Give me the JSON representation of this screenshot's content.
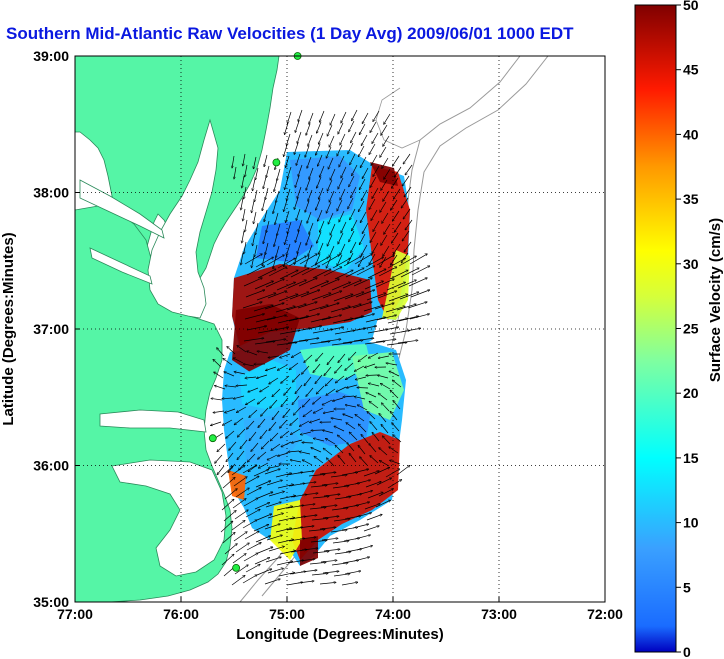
{
  "title": "Southern Mid-Atlantic Raw Velocities (1 Day Avg) 2009/06/01 1000 EDT",
  "map": {
    "xlabel": "Longitude (Degrees:Minutes)",
    "ylabel": "Latitude (Degrees:Minutes)",
    "x_ticks": [
      "77:00",
      "76:00",
      "75:00",
      "74:00",
      "73:00",
      "72:00"
    ],
    "y_ticks": [
      "39:00",
      "38:00",
      "37:00",
      "36:00",
      "35:00"
    ],
    "lon_range": [
      -77,
      -72
    ],
    "lat_range": [
      35,
      39
    ],
    "land_color": "#55f5a6",
    "grid": "dotted"
  },
  "colorbar": {
    "label": "Surface Velocity (cm/s)",
    "ticks": [
      "50",
      "45",
      "40",
      "35",
      "30",
      "25",
      "20",
      "15",
      "10",
      "5",
      "0"
    ],
    "min": 0,
    "max": 50,
    "colormap": "jet"
  },
  "stations": [
    {
      "lon": -74.9,
      "lat": 39.0
    },
    {
      "lon": -75.1,
      "lat": 38.22
    },
    {
      "lon": -75.7,
      "lat": 36.2
    },
    {
      "lon": -75.48,
      "lat": 35.25
    }
  ],
  "velocity_field": [
    {
      "name": "north-slow-region",
      "lon": [
        -75.55,
        -74.2
      ],
      "lat": [
        37.2,
        38.3
      ],
      "speed_cm_s": 10
    },
    {
      "name": "northeast-fast-band",
      "lon": [
        -74.25,
        -73.95
      ],
      "lat": [
        37.2,
        38.2
      ],
      "speed_cm_s": 45
    },
    {
      "name": "central-jet",
      "lon": [
        -75.55,
        -74.5
      ],
      "lat": [
        36.6,
        37.35
      ],
      "speed_cm_s": 50
    },
    {
      "name": "south-slow-region",
      "lon": [
        -75.6,
        -74.4
      ],
      "lat": [
        35.9,
        36.6
      ],
      "speed_cm_s": 10
    },
    {
      "name": "southeast-fast-band",
      "lon": [
        -74.9,
        -74.05
      ],
      "lat": [
        35.35,
        36.2
      ],
      "speed_cm_s": 45
    }
  ]
}
